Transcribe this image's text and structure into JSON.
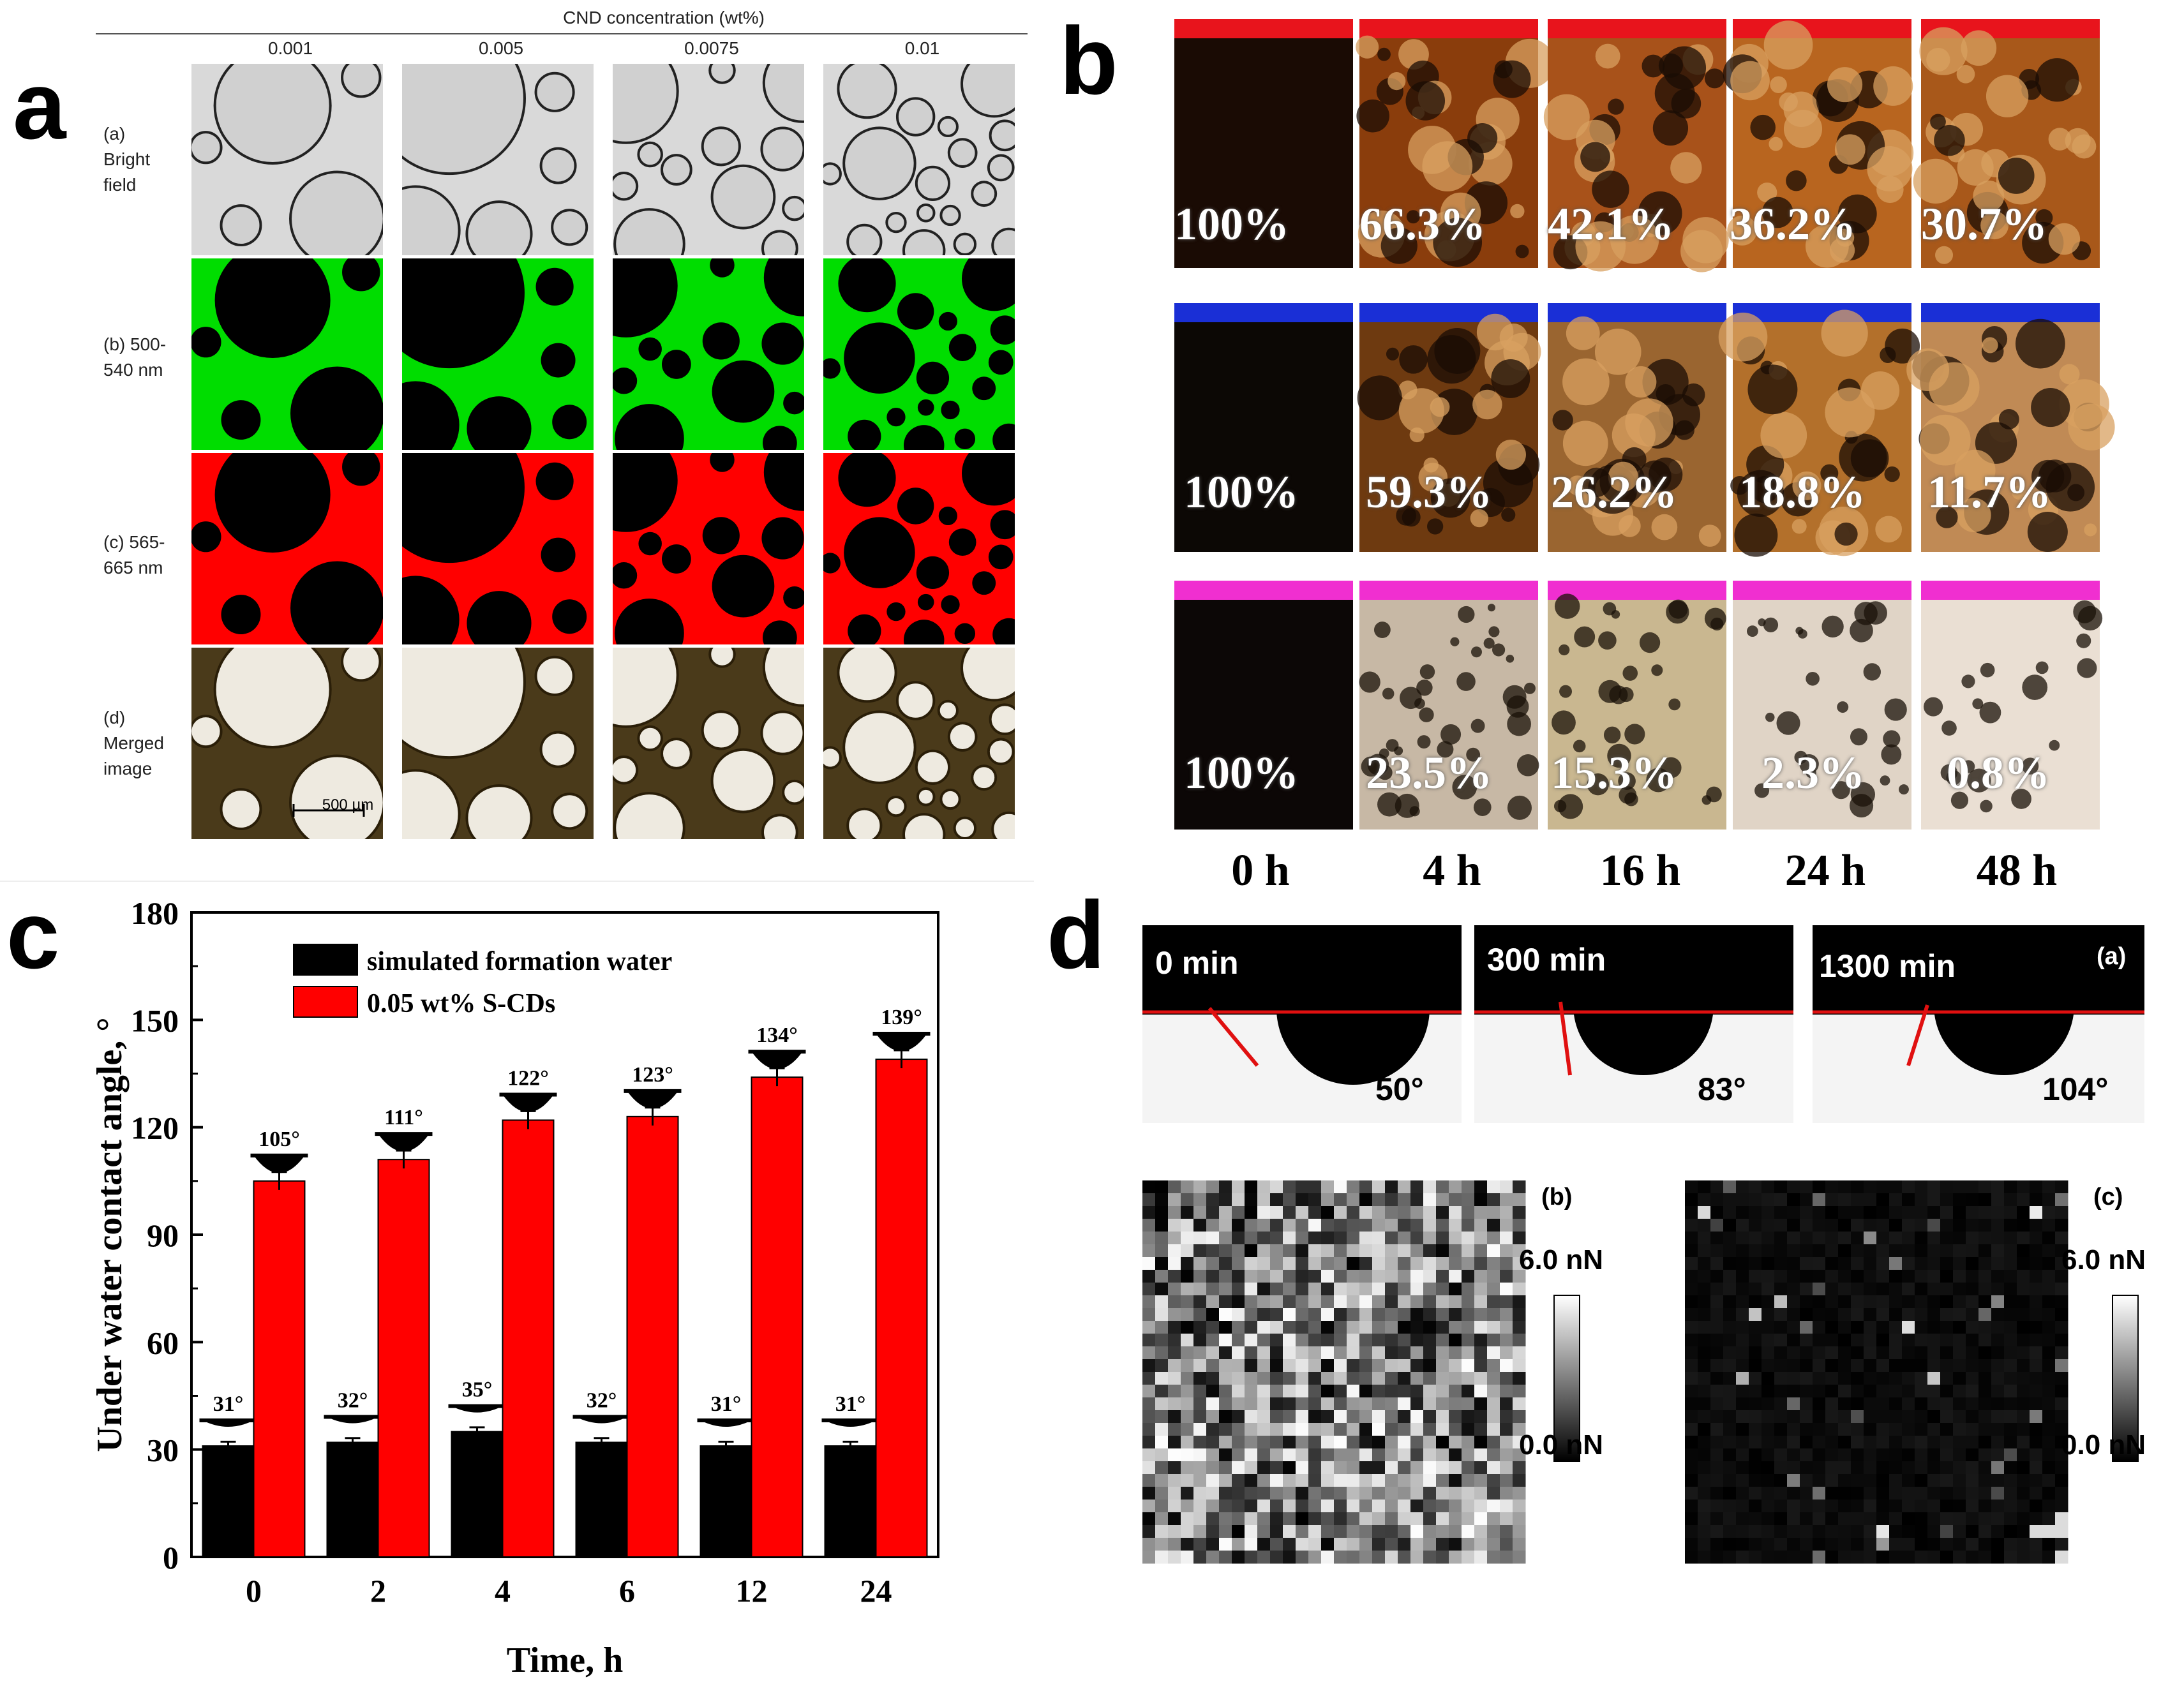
{
  "panels": {
    "a": {
      "letter": "a",
      "header": "CND concentration (wt%)",
      "columns": [
        "0.001",
        "0.005",
        "0.0075",
        "0.01"
      ],
      "rows": [
        "(a)\nBright\nfield",
        "(b) 500-\n540 nm",
        "(c) 565-\n665 nm",
        "(d)\nMerged\nimage"
      ],
      "scale_bar": "500 µm"
    },
    "b": {
      "letter": "b",
      "rows": [
        {
          "color": "#e8141c",
          "values": [
            "100%",
            "66.3%",
            "42.1%",
            "36.2%",
            "30.7%"
          ]
        },
        {
          "color": "#1a2fd6",
          "values": [
            "100%",
            "59.3%",
            "26.2%",
            "18.8%",
            "11.7%"
          ]
        },
        {
          "color": "#f02fd0",
          "values": [
            "100%",
            "23.5%",
            "15.3%",
            "2.3%",
            "0.8%"
          ]
        }
      ],
      "times": [
        "0 h",
        "4 h",
        "16 h",
        "24 h",
        "48 h"
      ]
    },
    "c": {
      "letter": "c"
    },
    "d": {
      "letter": "d",
      "droplets": [
        {
          "time": "0 min",
          "angle": "50°"
        },
        {
          "time": "300 min",
          "angle": "83°"
        },
        {
          "time": "1300 min",
          "angle": "104°",
          "tag": "(a)"
        }
      ],
      "maps": [
        {
          "tag": "(b)",
          "max": "6.0 nN",
          "min": "0.0 nN"
        },
        {
          "tag": "(c)",
          "max": "6.0 nN",
          "min": "0.0 nN"
        }
      ]
    }
  },
  "chart_data": {
    "type": "bar",
    "categories": [
      "0",
      "2",
      "4",
      "6",
      "12",
      "24"
    ],
    "series": [
      {
        "name": "simulated formation water",
        "color": "#000000",
        "values": [
          31,
          32,
          35,
          32,
          31,
          31
        ],
        "labels": [
          "31°",
          "32°",
          "35°",
          "32°",
          "31°",
          "31°"
        ]
      },
      {
        "name": "0.05 wt% S-CDs",
        "color": "#ff0000",
        "values": [
          105,
          111,
          122,
          123,
          134,
          139
        ],
        "labels": [
          "105°",
          "111°",
          "122°",
          "123°",
          "134°",
          "139°"
        ]
      }
    ],
    "xlabel": "Time, h",
    "ylabel": "Under water contact angle, °",
    "ylim": [
      0,
      180
    ],
    "yticks": [
      "0",
      "30",
      "60",
      "90",
      "120",
      "150",
      "180"
    ],
    "legend_position": "top-left",
    "grid": false
  }
}
